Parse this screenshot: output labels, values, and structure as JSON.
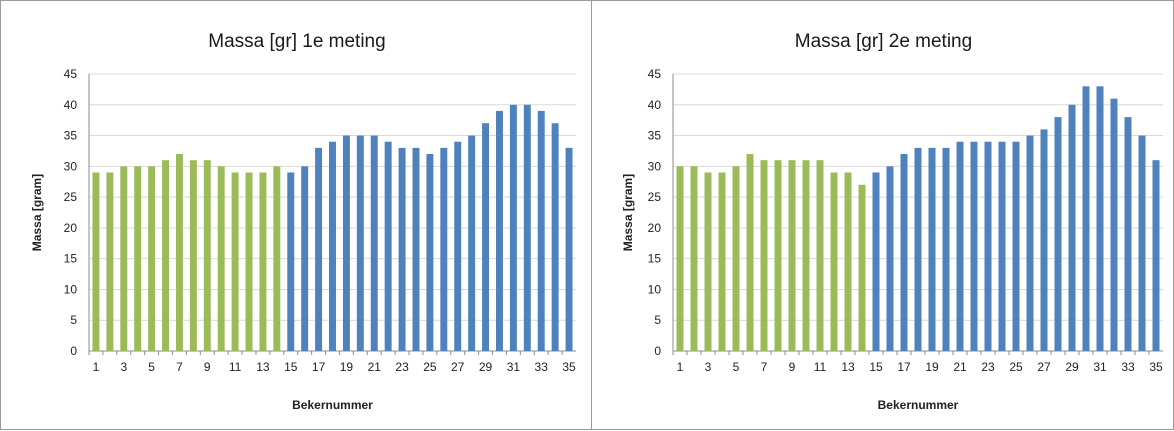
{
  "chart_data": [
    {
      "type": "bar",
      "title": "Massa [gr] 1e meting",
      "xlabel": "Bekernummer",
      "ylabel": "Massa [gram]",
      "ylim": [
        0,
        45
      ],
      "yticks": [
        0,
        5,
        10,
        15,
        20,
        25,
        30,
        35,
        40,
        45
      ],
      "grid": true,
      "legend": "none",
      "x": [
        1,
        2,
        3,
        4,
        5,
        6,
        7,
        8,
        9,
        10,
        11,
        12,
        13,
        14,
        15,
        16,
        17,
        18,
        19,
        20,
        21,
        22,
        23,
        24,
        25,
        26,
        27,
        28,
        29,
        30,
        31,
        32,
        33,
        34,
        35
      ],
      "xtick_labels": [
        "1",
        "3",
        "5",
        "7",
        "9",
        "11",
        "13",
        "15",
        "17",
        "19",
        "21",
        "23",
        "25",
        "27",
        "29",
        "31",
        "33",
        "35"
      ],
      "values": [
        29,
        29,
        30,
        30,
        30,
        31,
        32,
        31,
        31,
        30,
        29,
        29,
        29,
        30,
        29,
        30,
        33,
        34,
        35,
        35,
        35,
        34,
        33,
        33,
        32,
        33,
        34,
        35,
        37,
        39,
        40,
        40,
        39,
        37,
        33
      ],
      "colors": {
        "group_a": "#9bbb59",
        "group_b": "#4f81bd"
      },
      "group_a_count": 14
    },
    {
      "type": "bar",
      "title": "Massa [gr] 2e meting",
      "xlabel": "Bekernummer",
      "ylabel": "Massa [gram]",
      "ylim": [
        0,
        45
      ],
      "yticks": [
        0,
        5,
        10,
        15,
        20,
        25,
        30,
        35,
        40,
        45
      ],
      "grid": true,
      "legend": "none",
      "x": [
        1,
        2,
        3,
        4,
        5,
        6,
        7,
        8,
        9,
        10,
        11,
        12,
        13,
        14,
        15,
        16,
        17,
        18,
        19,
        20,
        21,
        22,
        23,
        24,
        25,
        26,
        27,
        28,
        29,
        30,
        31,
        32,
        33,
        34,
        35
      ],
      "xtick_labels": [
        "1",
        "3",
        "5",
        "7",
        "9",
        "11",
        "13",
        "15",
        "17",
        "19",
        "21",
        "23",
        "25",
        "27",
        "29",
        "31",
        "33",
        "35"
      ],
      "values": [
        30,
        30,
        29,
        29,
        30,
        32,
        31,
        31,
        31,
        31,
        31,
        29,
        29,
        27,
        29,
        30,
        32,
        33,
        33,
        33,
        34,
        34,
        34,
        34,
        34,
        35,
        36,
        38,
        40,
        43,
        43,
        41,
        38,
        35,
        31
      ],
      "colors": {
        "group_a": "#9bbb59",
        "group_b": "#4f81bd"
      },
      "group_a_count": 14
    }
  ]
}
